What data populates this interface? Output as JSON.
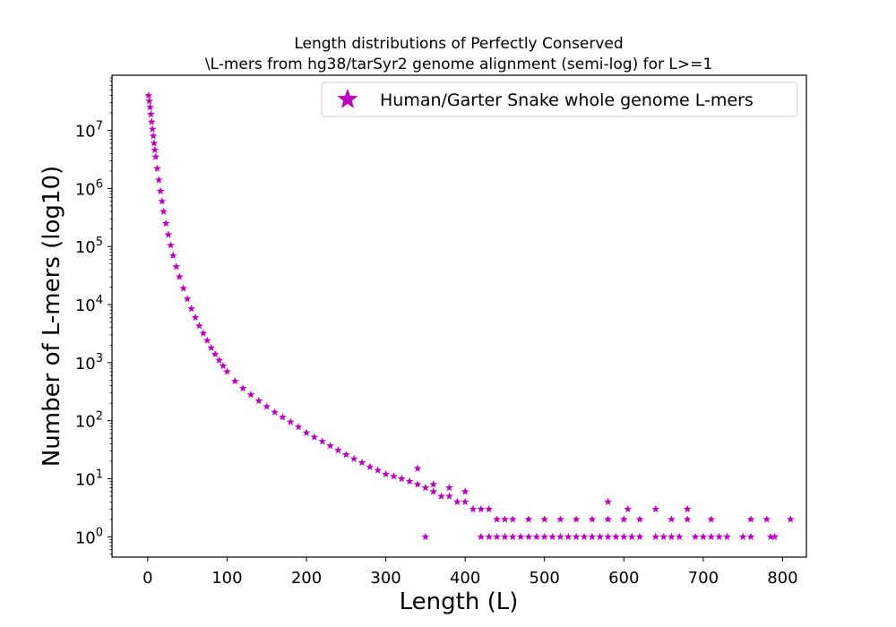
{
  "chart_data": {
    "type": "scatter",
    "title": [
      "Length distributions of Perfectly Conserved",
      "\\L-mers from hg38/tarSyr2 genome alignment (semi-log) for L>=1"
    ],
    "xlabel": "Length (L)",
    "ylabel": "Number of L-mers (log10)",
    "xlim": [
      -45,
      830
    ],
    "ylim_log10": [
      -0.35,
      7.95
    ],
    "yscale": "log",
    "x_ticks": [
      0,
      100,
      200,
      300,
      400,
      500,
      600,
      700,
      800
    ],
    "y_tick_exponents": [
      0,
      1,
      2,
      3,
      4,
      5,
      6,
      7
    ],
    "y_tick_base": "10",
    "legend": {
      "placement": "top-right",
      "entries": [
        "Human/Garter Snake whole genome L-mers"
      ]
    },
    "marker": "star",
    "color": "#bf00bf",
    "grid": false,
    "series": [
      {
        "name": "Human/Garter Snake whole genome L-mers",
        "points": [
          [
            1,
            40000000
          ],
          [
            2,
            32000000
          ],
          [
            3,
            25000000
          ],
          [
            4,
            19000000
          ],
          [
            5,
            14000000
          ],
          [
            6,
            10500000
          ],
          [
            7,
            8000000
          ],
          [
            8,
            6000000
          ],
          [
            9,
            4600000
          ],
          [
            10,
            3500000
          ],
          [
            12,
            2200000
          ],
          [
            14,
            1400000
          ],
          [
            16,
            900000
          ],
          [
            18,
            600000
          ],
          [
            20,
            400000
          ],
          [
            23,
            250000
          ],
          [
            26,
            160000
          ],
          [
            29,
            105000
          ],
          [
            32,
            70000
          ],
          [
            36,
            45000
          ],
          [
            40,
            30000
          ],
          [
            45,
            19000
          ],
          [
            50,
            12500
          ],
          [
            55,
            8500
          ],
          [
            60,
            6000
          ],
          [
            65,
            4300
          ],
          [
            70,
            3200
          ],
          [
            75,
            2400
          ],
          [
            80,
            1800
          ],
          [
            85,
            1400
          ],
          [
            90,
            1100
          ],
          [
            95,
            880
          ],
          [
            100,
            700
          ],
          [
            110,
            480
          ],
          [
            120,
            360
          ],
          [
            130,
            280
          ],
          [
            140,
            220
          ],
          [
            150,
            175
          ],
          [
            160,
            140
          ],
          [
            170,
            115
          ],
          [
            180,
            95
          ],
          [
            190,
            78
          ],
          [
            200,
            62
          ],
          [
            210,
            52
          ],
          [
            220,
            44
          ],
          [
            230,
            37
          ],
          [
            240,
            31
          ],
          [
            250,
            26
          ],
          [
            260,
            22
          ],
          [
            270,
            19
          ],
          [
            280,
            16
          ],
          [
            290,
            14
          ],
          [
            300,
            12
          ],
          [
            310,
            11
          ],
          [
            320,
            10
          ],
          [
            330,
            9
          ],
          [
            340,
            8
          ],
          [
            350,
            7
          ],
          [
            360,
            6
          ],
          [
            370,
            5
          ],
          [
            380,
            5
          ],
          [
            390,
            4
          ],
          [
            400,
            4
          ],
          [
            410,
            3
          ],
          [
            420,
            3
          ],
          [
            430,
            3
          ],
          [
            440,
            2
          ],
          [
            450,
            2
          ],
          [
            460,
            2
          ],
          [
            350,
            1
          ],
          [
            420,
            1
          ],
          [
            430,
            1
          ],
          [
            440,
            1
          ],
          [
            450,
            1
          ],
          [
            460,
            1
          ],
          [
            470,
            1
          ],
          [
            480,
            1
          ],
          [
            490,
            1
          ],
          [
            500,
            1
          ],
          [
            510,
            1
          ],
          [
            520,
            1
          ],
          [
            530,
            1
          ],
          [
            540,
            1
          ],
          [
            550,
            1
          ],
          [
            560,
            1
          ],
          [
            570,
            1
          ],
          [
            580,
            1
          ],
          [
            590,
            1
          ],
          [
            600,
            1
          ],
          [
            610,
            1
          ],
          [
            620,
            1
          ],
          [
            640,
            1
          ],
          [
            650,
            1
          ],
          [
            660,
            1
          ],
          [
            670,
            1
          ],
          [
            690,
            1
          ],
          [
            700,
            1
          ],
          [
            710,
            1
          ],
          [
            720,
            1
          ],
          [
            730,
            1
          ],
          [
            750,
            1
          ],
          [
            760,
            1
          ],
          [
            785,
            1
          ],
          [
            790,
            1
          ],
          [
            480,
            2
          ],
          [
            500,
            2
          ],
          [
            520,
            2
          ],
          [
            540,
            2
          ],
          [
            560,
            2
          ],
          [
            580,
            2
          ],
          [
            600,
            2
          ],
          [
            620,
            2
          ],
          [
            660,
            2
          ],
          [
            680,
            2
          ],
          [
            710,
            2
          ],
          [
            760,
            2
          ],
          [
            780,
            2
          ],
          [
            810,
            2
          ],
          [
            605,
            3
          ],
          [
            640,
            3
          ],
          [
            680,
            3
          ],
          [
            580,
            4
          ],
          [
            340,
            15
          ],
          [
            360,
            8
          ],
          [
            380,
            7
          ],
          [
            400,
            6
          ]
        ]
      }
    ]
  }
}
